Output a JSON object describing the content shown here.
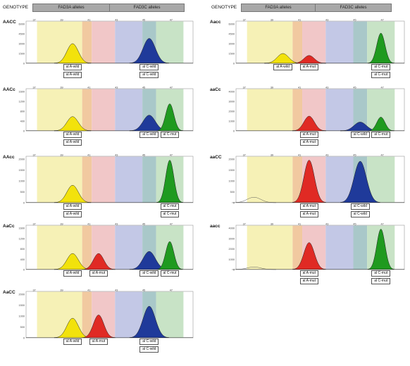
{
  "header": {
    "genotype_label": "GENOTYPE",
    "fad3a_label": "FAD3A alleles",
    "fad3c_label": "FAD3C alleles"
  },
  "colors": {
    "yellow_bg": "#f6f1b6",
    "orange_bg": "#f1c9a0",
    "pink_bg": "#f1c7c8",
    "blue_bg": "#c3c8e6",
    "teal_bg": "#a9c8c9",
    "green_bg": "#c8e3c6",
    "yellow_peak": "#f2e20c",
    "red_peak": "#e02a24",
    "blue_peak": "#1f3a9a",
    "green_peak": "#1f9a1f"
  },
  "chart_data": [
    {
      "type": "area",
      "genotype": "AACC",
      "xticks": [
        "37",
        "39",
        "41",
        "43",
        "45",
        "47"
      ],
      "yticks": [
        "0",
        "1500",
        "3000",
        "4500",
        "6000"
      ],
      "ylim": [
        0,
        6000
      ],
      "peaks": [
        {
          "allele": "A-wild",
          "color": "yellow",
          "x": 39.8,
          "height": 3000
        },
        {
          "allele": "C-wild",
          "color": "blue",
          "x": 45.4,
          "height": 3800
        }
      ],
      "labels": [
        [
          "al A-wild",
          "al A-wild"
        ],
        [
          "al C-wild",
          "al C-wild"
        ]
      ]
    },
    {
      "type": "area",
      "genotype": "AACc",
      "xticks": [
        "37",
        "39",
        "41",
        "43",
        "45",
        "47"
      ],
      "yticks": [
        "0",
        "400",
        "800",
        "1200",
        "1600"
      ],
      "ylim": [
        0,
        1600
      ],
      "peaks": [
        {
          "allele": "A-wild",
          "color": "yellow",
          "x": 39.8,
          "height": 580
        },
        {
          "allele": "C-wild",
          "color": "blue",
          "x": 45.4,
          "height": 640
        },
        {
          "allele": "C-mut",
          "color": "green",
          "x": 46.9,
          "height": 1100
        }
      ],
      "labels": [
        [
          "al A-wild",
          "al A-wild"
        ],
        [
          "al C-wild"
        ],
        [
          "al C-mut"
        ]
      ]
    },
    {
      "type": "area",
      "genotype": "AAcc",
      "xticks": [
        "37",
        "39",
        "41",
        "43",
        "45",
        "47"
      ],
      "yticks": [
        "0",
        "500",
        "1000",
        "1500",
        "2000"
      ],
      "ylim": [
        0,
        2000
      ],
      "peaks": [
        {
          "allele": "A-wild",
          "color": "yellow",
          "x": 39.8,
          "height": 800
        },
        {
          "allele": "C-mut",
          "color": "green",
          "x": 46.9,
          "height": 1950
        }
      ],
      "labels": [
        [
          "al A-wild",
          "al A-wild"
        ],
        [
          "al C-mut",
          "al C-mut"
        ]
      ]
    },
    {
      "type": "area",
      "genotype": "AaCc",
      "xticks": [
        "37",
        "39",
        "41",
        "43",
        "45",
        "47"
      ],
      "yticks": [
        "0",
        "400",
        "800",
        "1200",
        "1600"
      ],
      "ylim": [
        0,
        1600
      ],
      "peaks": [
        {
          "allele": "A-wild",
          "color": "yellow",
          "x": 39.8,
          "height": 620
        },
        {
          "allele": "A-mut",
          "color": "red",
          "x": 41.7,
          "height": 620
        },
        {
          "allele": "C-wild",
          "color": "blue",
          "x": 45.4,
          "height": 700
        },
        {
          "allele": "C-mut",
          "color": "green",
          "x": 46.9,
          "height": 1080
        }
      ],
      "labels": [
        [
          "al A-wild"
        ],
        [
          "al A-mut"
        ],
        [
          "al C-wild"
        ],
        [
          "al C-mut"
        ]
      ]
    },
    {
      "type": "area",
      "genotype": "AaCC",
      "xticks": [
        "37",
        "39",
        "41",
        "43",
        "45",
        "47"
      ],
      "yticks": [
        "0",
        "500",
        "1000",
        "1500",
        "2000"
      ],
      "ylim": [
        0,
        2000
      ],
      "peaks": [
        {
          "allele": "A-wild",
          "color": "yellow",
          "x": 39.8,
          "height": 900
        },
        {
          "allele": "A-mut",
          "color": "red",
          "x": 41.7,
          "height": 1050
        },
        {
          "allele": "C-wild",
          "color": "blue",
          "x": 45.4,
          "height": 1450
        }
      ],
      "labels": [
        [
          "al A-wild"
        ],
        [
          "al A-mut"
        ],
        [
          "al C-wild",
          "al C-wild"
        ]
      ]
    },
    {
      "type": "area",
      "genotype": "Aacc",
      "xticks": [
        "37",
        "39",
        "41",
        "43",
        "45",
        "47"
      ],
      "yticks": [
        "0",
        "1500",
        "3000",
        "4500",
        "6000"
      ],
      "ylim": [
        0,
        6000
      ],
      "peaks": [
        {
          "allele": "A-wild",
          "color": "yellow",
          "x": 39.8,
          "height": 1500
        },
        {
          "allele": "A-mut",
          "color": "red",
          "x": 41.7,
          "height": 1200
        },
        {
          "allele": "C-mut",
          "color": "green",
          "x": 46.9,
          "height": 4600
        }
      ],
      "labels": [
        [
          "al A-wild"
        ],
        [
          "al A-mut"
        ],
        [
          "al C-mut",
          "al C-mut"
        ]
      ]
    },
    {
      "type": "area",
      "genotype": "aaCc",
      "xticks": [
        "37",
        "39",
        "41",
        "43",
        "45",
        "47"
      ],
      "yticks": [
        "0",
        "1000",
        "2000",
        "3000",
        "4000"
      ],
      "ylim": [
        0,
        4000
      ],
      "peaks": [
        {
          "allele": "A-mut",
          "color": "red",
          "x": 41.7,
          "height": 1500
        },
        {
          "allele": "C-wild",
          "color": "blue",
          "x": 45.4,
          "height": 900
        },
        {
          "allele": "C-mut",
          "color": "green",
          "x": 46.9,
          "height": 1400
        }
      ],
      "labels": [
        [
          "al A-mut",
          "al A-mut"
        ],
        [
          "al C-wild"
        ],
        [
          "al C-mut"
        ]
      ]
    },
    {
      "type": "area",
      "genotype": "aaCC",
      "xticks": [
        "37",
        "39",
        "41",
        "43",
        "45",
        "47"
      ],
      "yticks": [
        "0",
        "500",
        "1000",
        "1500",
        "2000"
      ],
      "ylim": [
        0,
        2000
      ],
      "peaks": [
        {
          "allele": "A-wild",
          "color": "none",
          "x": 37.7,
          "height": 250
        },
        {
          "allele": "A-mut",
          "color": "red",
          "x": 41.7,
          "height": 1950
        },
        {
          "allele": "C-wild",
          "color": "blue",
          "x": 45.4,
          "height": 1900
        }
      ],
      "labels": [
        [
          "al A-mut",
          "al A-mut"
        ],
        [
          "al C-wild",
          "al C-wild"
        ]
      ]
    },
    {
      "type": "area",
      "genotype": "aacc",
      "xticks": [
        "37",
        "39",
        "41",
        "43",
        "45",
        "47"
      ],
      "yticks": [
        "0",
        "1000",
        "2000",
        "3000",
        "4000"
      ],
      "ylim": [
        0,
        4000
      ],
      "peaks": [
        {
          "allele": "A-wild",
          "color": "none",
          "x": 37.7,
          "height": 250
        },
        {
          "allele": "A-mut",
          "color": "red",
          "x": 41.7,
          "height": 2600
        },
        {
          "allele": "C-mut",
          "color": "green",
          "x": 46.9,
          "height": 3900
        }
      ],
      "labels": [
        [
          "al A-mut",
          "al A-mut"
        ],
        [
          "al C-mut",
          "al C-mut"
        ]
      ]
    }
  ]
}
